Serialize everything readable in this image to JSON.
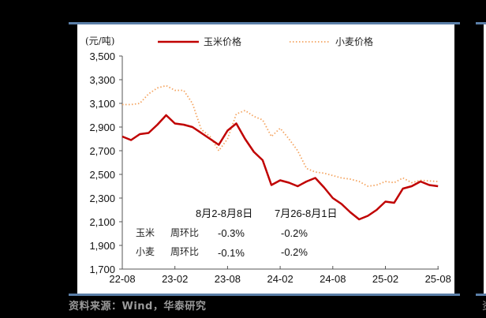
{
  "chart_data": {
    "type": "line",
    "title": "",
    "unit_label": "(元/吨)",
    "xlabel": "",
    "ylabel": "元/吨",
    "ylim": [
      1700,
      3500
    ],
    "yticks": [
      1700,
      1900,
      2100,
      2300,
      2500,
      2700,
      2900,
      3100,
      3300,
      3500
    ],
    "ytick_labels": [
      "1,700",
      "1,900",
      "2,100",
      "2,300",
      "2,500",
      "2,700",
      "2,900",
      "3,100",
      "3,300",
      "3,500"
    ],
    "xtick_labels": [
      "22-08",
      "23-02",
      "23-08",
      "24-02",
      "24-08",
      "25-02",
      "25-08"
    ],
    "grid": false,
    "legend_position": "top",
    "series": [
      {
        "name": "玉米价格",
        "color": "#c00000",
        "style": "solid",
        "points": [
          [
            "22-08",
            2820
          ],
          [
            "22-09",
            2790
          ],
          [
            "22-10",
            2840
          ],
          [
            "22-11",
            2850
          ],
          [
            "22-12",
            2920
          ],
          [
            "23-01",
            3000
          ],
          [
            "23-02",
            2930
          ],
          [
            "23-03",
            2920
          ],
          [
            "23-04",
            2900
          ],
          [
            "23-05",
            2850
          ],
          [
            "23-06",
            2800
          ],
          [
            "23-07",
            2750
          ],
          [
            "23-08",
            2870
          ],
          [
            "23-09",
            2930
          ],
          [
            "23-10",
            2800
          ],
          [
            "23-11",
            2690
          ],
          [
            "23-12",
            2620
          ],
          [
            "24-01",
            2410
          ],
          [
            "24-02",
            2450
          ],
          [
            "24-03",
            2430
          ],
          [
            "24-04",
            2400
          ],
          [
            "24-05",
            2440
          ],
          [
            "24-06",
            2470
          ],
          [
            "24-07",
            2390
          ],
          [
            "24-08",
            2300
          ],
          [
            "24-09",
            2250
          ],
          [
            "24-10",
            2180
          ],
          [
            "24-11",
            2120
          ],
          [
            "24-12",
            2150
          ],
          [
            "25-01",
            2200
          ],
          [
            "25-02",
            2270
          ],
          [
            "25-03",
            2260
          ],
          [
            "25-04",
            2380
          ],
          [
            "25-05",
            2400
          ],
          [
            "25-06",
            2440
          ],
          [
            "25-07",
            2410
          ],
          [
            "25-08",
            2400
          ]
        ]
      },
      {
        "name": "小麦价格",
        "color": "#f4a460",
        "style": "dotted",
        "points": [
          [
            "22-08",
            3090
          ],
          [
            "22-09",
            3090
          ],
          [
            "22-10",
            3100
          ],
          [
            "22-11",
            3180
          ],
          [
            "22-12",
            3230
          ],
          [
            "23-01",
            3250
          ],
          [
            "23-02",
            3210
          ],
          [
            "23-03",
            3210
          ],
          [
            "23-04",
            3100
          ],
          [
            "23-05",
            2880
          ],
          [
            "23-06",
            2820
          ],
          [
            "23-07",
            2700
          ],
          [
            "23-08",
            2800
          ],
          [
            "23-09",
            3010
          ],
          [
            "23-10",
            3040
          ],
          [
            "23-11",
            2990
          ],
          [
            "23-12",
            2960
          ],
          [
            "24-01",
            2820
          ],
          [
            "24-02",
            2890
          ],
          [
            "24-03",
            2800
          ],
          [
            "24-04",
            2700
          ],
          [
            "24-05",
            2550
          ],
          [
            "24-06",
            2520
          ],
          [
            "24-07",
            2510
          ],
          [
            "24-08",
            2490
          ],
          [
            "24-09",
            2470
          ],
          [
            "24-10",
            2460
          ],
          [
            "24-11",
            2440
          ],
          [
            "24-12",
            2400
          ],
          [
            "25-01",
            2410
          ],
          [
            "25-02",
            2440
          ],
          [
            "25-03",
            2430
          ],
          [
            "25-04",
            2470
          ],
          [
            "25-05",
            2430
          ],
          [
            "25-06",
            2450
          ],
          [
            "25-07",
            2445
          ],
          [
            "25-08",
            2440
          ]
        ]
      }
    ],
    "annotations": {
      "period_headers": [
        "8月2-8月8日",
        "7月26-8月1日"
      ],
      "rows": [
        {
          "item": "玉米",
          "metric": "周环比",
          "values": [
            "-0.3%",
            "-0.2%"
          ]
        },
        {
          "item": "小麦",
          "metric": "周环比",
          "values": [
            "-0.1%",
            "-0.2%"
          ]
        }
      ]
    }
  },
  "legend": {
    "corn": "玉米价格",
    "wheat": "小麦价格"
  },
  "source": "资料来源：Wind，华泰研究"
}
